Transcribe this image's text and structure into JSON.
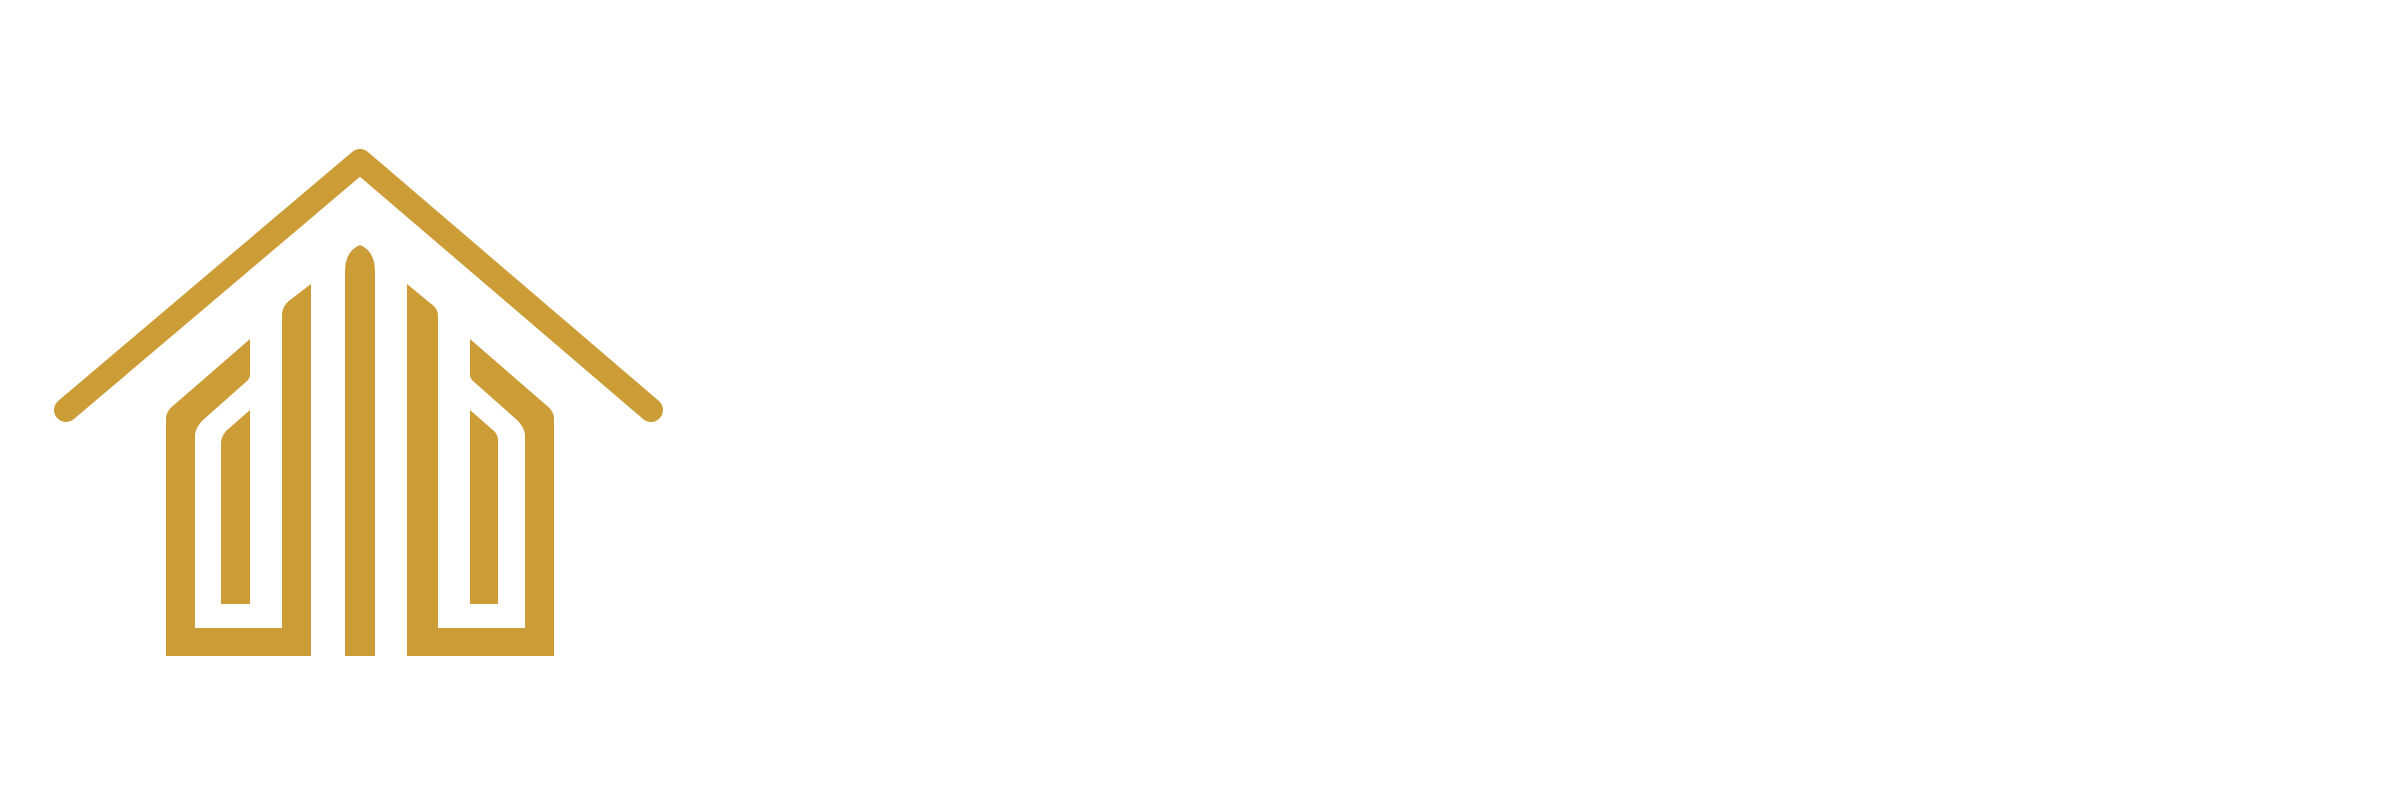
{
  "logo": {
    "icon": "house-lines-logo-icon",
    "color": "#CC9C37"
  }
}
